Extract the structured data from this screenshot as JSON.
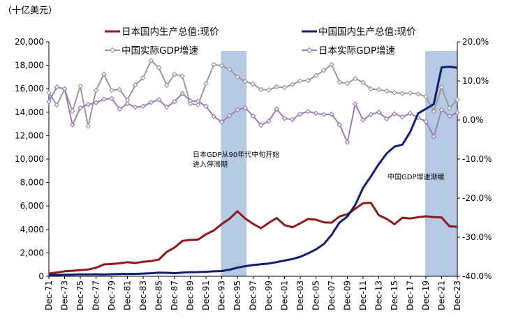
{
  "unit_label": "（十亿美元）",
  "annotations": {
    "japan_stagnation": [
      "日本GDP从90年代中旬开始",
      "进入停滞期"
    ],
    "china_slowdown": "中国GDP增速渐缓"
  },
  "colors": {
    "japan_gdp": "#8b1a1a",
    "china_gdp": "#0f1f6e",
    "china_growth": "#999999",
    "japan_growth": "#9a7cb8",
    "shade": "#a8bfe0"
  },
  "chart_data": {
    "type": "line",
    "x": [
      "Dec-71",
      "Dec-72",
      "Dec-73",
      "Dec-74",
      "Dec-75",
      "Dec-76",
      "Dec-77",
      "Dec-78",
      "Dec-79",
      "Dec-80",
      "Dec-81",
      "Dec-82",
      "Dec-83",
      "Dec-84",
      "Dec-85",
      "Dec-86",
      "Dec-87",
      "Dec-88",
      "Dec-89",
      "Dec-90",
      "Dec-91",
      "Dec-92",
      "Dec-93",
      "Dec-94",
      "Dec-95",
      "Dec-96",
      "Dec-97",
      "Dec-98",
      "Dec-99",
      "Dec-00",
      "Dec-01",
      "Dec-02",
      "Dec-03",
      "Dec-04",
      "Dec-05",
      "Dec-06",
      "Dec-07",
      "Dec-08",
      "Dec-09",
      "Dec-10",
      "Dec-11",
      "Dec-12",
      "Dec-13",
      "Dec-14",
      "Dec-15",
      "Dec-16",
      "Dec-17",
      "Dec-18",
      "Dec-19",
      "Dec-20",
      "Dec-21",
      "Dec-22",
      "Dec-23"
    ],
    "xtick_labels": [
      "Dec-71",
      "Dec-73",
      "Dec-75",
      "Dec-77",
      "Dec-79",
      "Dec-81",
      "Dec-83",
      "Dec-85",
      "Dec-87",
      "Dec-89",
      "Dec-91",
      "Dec-93",
      "Dec-95",
      "Dec-97",
      "Dec-99",
      "Dec-01",
      "Dec-03",
      "Dec-05",
      "Dec-07",
      "Dec-09",
      "Dec-11",
      "Dec-13",
      "Dec-15",
      "Dec-17",
      "Dec-19",
      "Dec-21",
      "Dec-23"
    ],
    "y_left": {
      "min": 0,
      "max": 20000,
      "step": 2000,
      "tick_labels": [
        "0",
        "2,000",
        "4,000",
        "6,000",
        "8,000",
        "10,000",
        "12,000",
        "14,000",
        "16,000",
        "18,000",
        "20,000"
      ]
    },
    "y_right": {
      "min": -40,
      "max": 20,
      "step": 10,
      "tick_labels": [
        "-40.0%",
        "-30.0%",
        "-20.0%",
        "-10.0%",
        "0.0%",
        "10.0%",
        "20.0%"
      ]
    },
    "shaded_ranges": [
      [
        "Dec-93",
        "Dec-96"
      ],
      [
        "Dec-19",
        "Dec-23"
      ]
    ],
    "legend_position": "top",
    "grid": false,
    "series": [
      {
        "name": "日本国内生产总值:现价",
        "axis": "left",
        "marker": "none",
        "width": 3,
        "color": "#8b1a1a",
        "values": [
          240,
          320,
          430,
          470,
          520,
          580,
          720,
          1010,
          1050,
          1110,
          1200,
          1130,
          1240,
          1300,
          1430,
          2080,
          2450,
          3020,
          3100,
          3130,
          3580,
          3910,
          4450,
          4910,
          5550,
          4920,
          4470,
          4100,
          4560,
          4970,
          4370,
          4180,
          4520,
          4890,
          4830,
          4600,
          4580,
          5110,
          5290,
          5760,
          6230,
          6270,
          5210,
          4900,
          4440,
          5000,
          4930,
          5040,
          5120,
          5050,
          5010,
          4260,
          4220
        ]
      },
      {
        "name": "中国国内生产总值:现价",
        "axis": "left",
        "marker": "none",
        "width": 3,
        "color": "#0f1f6e",
        "values": [
          100,
          115,
          135,
          145,
          165,
          155,
          175,
          150,
          180,
          190,
          200,
          205,
          230,
          260,
          310,
          300,
          270,
          310,
          350,
          360,
          380,
          425,
          445,
          565,
          735,
          865,
          960,
          1030,
          1090,
          1210,
          1340,
          1470,
          1660,
          1960,
          2290,
          2750,
          3550,
          4590,
          5100,
          6090,
          7550,
          8530,
          9570,
          10480,
          11060,
          11230,
          12310,
          13890,
          14280,
          14690,
          17820,
          17880,
          17790
        ]
      },
      {
        "name": "中国实际GDP增速",
        "axis": "right",
        "marker": "diamond-open",
        "width": 2,
        "color": "#999999",
        "values": [
          7.0,
          3.8,
          7.9,
          2.3,
          8.7,
          -1.6,
          7.6,
          11.7,
          7.6,
          7.8,
          5.1,
          9.0,
          10.8,
          15.2,
          13.4,
          8.9,
          11.7,
          11.2,
          4.2,
          3.9,
          9.3,
          14.2,
          13.9,
          13.0,
          11.0,
          9.9,
          9.2,
          7.8,
          7.7,
          8.5,
          8.3,
          9.1,
          10.0,
          10.1,
          11.4,
          12.7,
          14.2,
          9.7,
          9.4,
          10.6,
          9.6,
          7.9,
          7.8,
          7.4,
          7.0,
          6.8,
          6.9,
          6.7,
          6.0,
          2.2,
          8.4,
          3.0,
          5.2
        ]
      },
      {
        "name": "日本实际GDP增速",
        "axis": "right",
        "marker": "diamond-open",
        "width": 2,
        "color": "#9a7cb8",
        "values": [
          4.7,
          8.4,
          8.0,
          -1.2,
          3.1,
          4.0,
          4.4,
          5.3,
          5.5,
          2.8,
          4.2,
          3.3,
          3.5,
          4.5,
          5.2,
          3.3,
          4.7,
          6.8,
          4.9,
          4.8,
          3.5,
          0.9,
          -0.5,
          1.1,
          2.6,
          3.1,
          1.0,
          -1.3,
          -0.3,
          2.8,
          0.4,
          0.1,
          1.5,
          2.2,
          1.7,
          1.4,
          1.5,
          -1.2,
          -5.7,
          4.1,
          0.0,
          1.4,
          2.0,
          0.3,
          1.6,
          0.8,
          1.7,
          0.6,
          -0.4,
          -4.2,
          2.6,
          1.0,
          1.9
        ]
      }
    ]
  }
}
